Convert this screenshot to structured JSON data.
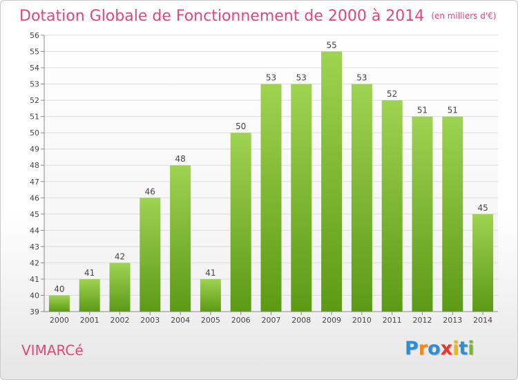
{
  "header": {
    "title": "Dotation Globale de Fonctionnement de 2000 à 2014",
    "subtitle": "(en milliers d'€)"
  },
  "commune": "VIMARCé",
  "logo": {
    "text": "Proxiti",
    "letters": [
      {
        "char": "P",
        "color": "#2b8fd6"
      },
      {
        "char": "r",
        "color": "#f08a1c"
      },
      {
        "char": "o",
        "color": "#2b8fd6"
      },
      {
        "char": "x",
        "color": "#e8372c"
      },
      {
        "char": "i",
        "color": "#f5b800"
      },
      {
        "char": "t",
        "color": "#2b8fd6"
      },
      {
        "char": "i",
        "color": "#7ab52b"
      }
    ]
  },
  "chart_data": {
    "type": "bar",
    "title": "Dotation Globale de Fonctionnement de 2000 à 2014",
    "subtitle": "(en milliers d'€)",
    "categories": [
      "2000",
      "2001",
      "2002",
      "2003",
      "2004",
      "2005",
      "2006",
      "2007",
      "2008",
      "2009",
      "2010",
      "2011",
      "2012",
      "2013",
      "2014"
    ],
    "values": [
      40,
      41,
      42,
      46,
      48,
      41,
      50,
      53,
      53,
      55,
      53,
      52,
      51,
      51,
      45
    ],
    "ylim": [
      39,
      56
    ],
    "yticks": [
      39,
      40,
      41,
      42,
      43,
      44,
      45,
      46,
      47,
      48,
      49,
      50,
      51,
      52,
      53,
      54,
      55,
      56
    ],
    "grid": true,
    "legend": "none",
    "bar_color_top": "#9fd352",
    "bar_color_bottom": "#5c9a16"
  }
}
